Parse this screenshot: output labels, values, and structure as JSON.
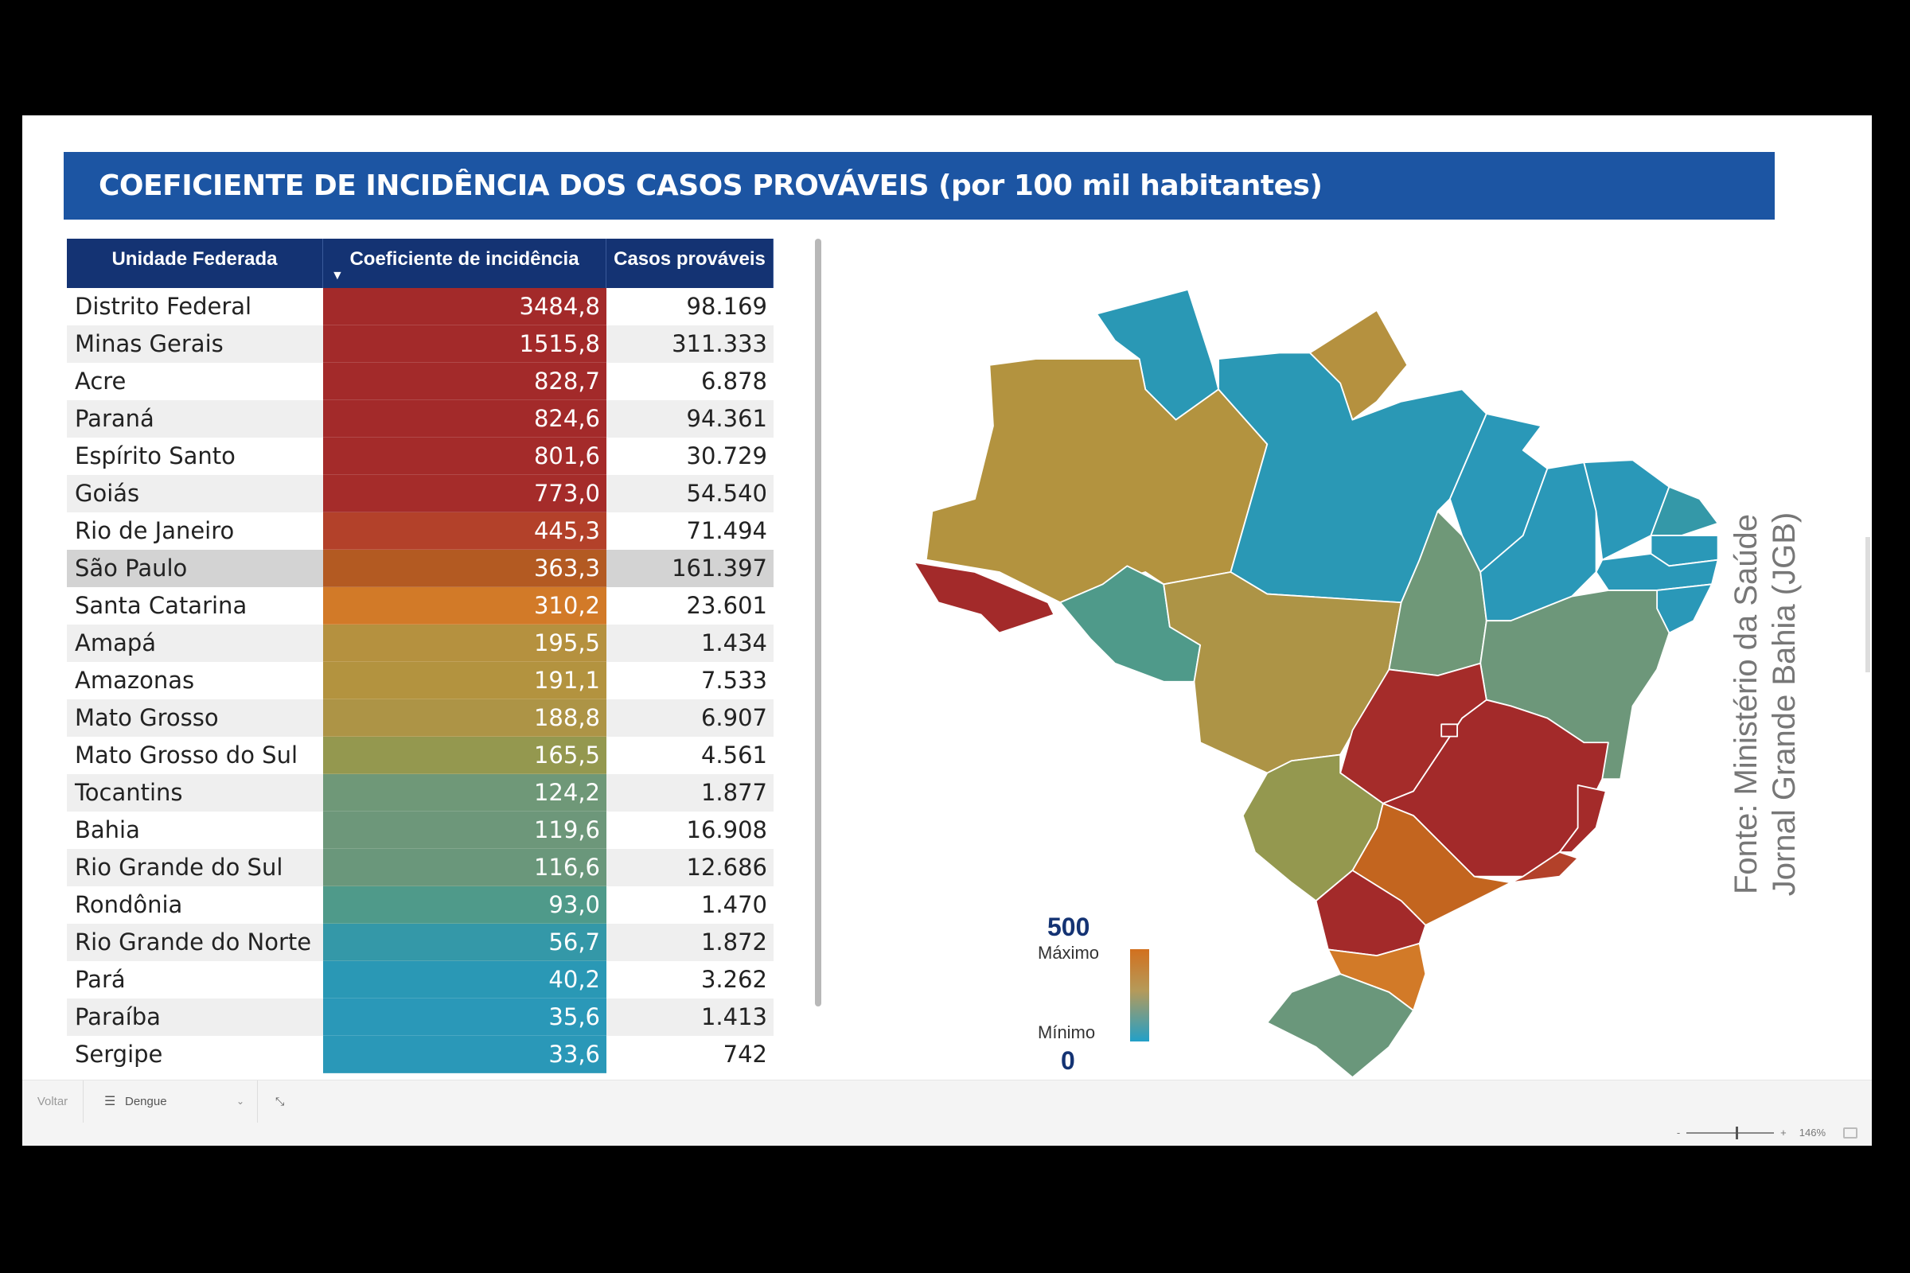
{
  "title": "COEFICIENTE DE INCIDÊNCIA DOS CASOS PROVÁVEIS (por 100 mil habitantes)",
  "table": {
    "headers": [
      "Unidade Federada",
      "Coeficiente de incidência",
      "Casos prováveis"
    ],
    "sort_indicator": "▼",
    "sorted_column": "Coeficiente de incidência",
    "sort_direction": "descending",
    "rows": [
      {
        "uf": "Distrito Federal",
        "coef": "3484,8",
        "casos": "98.169",
        "color": "#a32a2a"
      },
      {
        "uf": "Minas Gerais",
        "coef": "1515,8",
        "casos": "311.333",
        "color": "#a32a2a"
      },
      {
        "uf": "Acre",
        "coef": "828,7",
        "casos": "6.878",
        "color": "#a32a2a"
      },
      {
        "uf": "Paraná",
        "coef": "824,6",
        "casos": "94.361",
        "color": "#a32a2a"
      },
      {
        "uf": "Espírito Santo",
        "coef": "801,6",
        "casos": "30.729",
        "color": "#a42b2a"
      },
      {
        "uf": "Goiás",
        "coef": "773,0",
        "casos": "54.540",
        "color": "#a52c2a"
      },
      {
        "uf": "Rio de Janeiro",
        "coef": "445,3",
        "casos": "71.494",
        "color": "#b3412a"
      },
      {
        "uf": "São Paulo",
        "coef": "363,3",
        "casos": "161.397",
        "color": "#b35a22",
        "highlighted": true
      },
      {
        "uf": "Santa Catarina",
        "coef": "310,2",
        "casos": "23.601",
        "color": "#d27a28"
      },
      {
        "uf": "Amapá",
        "coef": "195,5",
        "casos": "1.434",
        "color": "#b5913f"
      },
      {
        "uf": "Amazonas",
        "coef": "191,1",
        "casos": "7.533",
        "color": "#b3933f"
      },
      {
        "uf": "Mato Grosso",
        "coef": "188,8",
        "casos": "6.907",
        "color": "#ad9446"
      },
      {
        "uf": "Mato Grosso do Sul",
        "coef": "165,5",
        "casos": "4.561",
        "color": "#94984f"
      },
      {
        "uf": "Tocantins",
        "coef": "124,2",
        "casos": "1.877",
        "color": "#6f9878"
      },
      {
        "uf": "Bahia",
        "coef": "119,6",
        "casos": "16.908",
        "color": "#6d977a"
      },
      {
        "uf": "Rio Grande do Sul",
        "coef": "116,6",
        "casos": "12.686",
        "color": "#6a977b"
      },
      {
        "uf": "Rondônia",
        "coef": "93,0",
        "casos": "1.470",
        "color": "#4f9a8a"
      },
      {
        "uf": "Rio Grande do Norte",
        "coef": "56,7",
        "casos": "1.872",
        "color": "#3498a8"
      },
      {
        "uf": "Pará",
        "coef": "40,2",
        "casos": "3.262",
        "color": "#2a98b5"
      },
      {
        "uf": "Paraíba",
        "coef": "35,6",
        "casos": "1.413",
        "color": "#2a98b8"
      },
      {
        "uf": "Sergipe",
        "coef": "33,6",
        "casos": "742",
        "color": "#2a98b8"
      }
    ]
  },
  "legend": {
    "max_value": "500",
    "max_label": "Máximo",
    "min_label": "Mínimo",
    "min_value": "0",
    "color_max": "#d2701e",
    "color_min": "#22a0c8"
  },
  "source": {
    "line1": "Fonte: Ministério da Saúde",
    "line2": "Jornal Grande Bahia (JGB)"
  },
  "toolbar": {
    "back_label": "Voltar",
    "page_select": "Dengue",
    "filter_icon": "lines-icon",
    "expand_icon": "collapse-arrows-icon"
  },
  "status": {
    "zoom_minus": "-",
    "zoom_plus": "+",
    "zoom_level": "146%",
    "zoom_slider_value": 146
  }
}
